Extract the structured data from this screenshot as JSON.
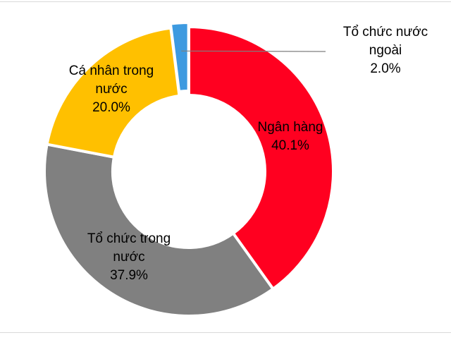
{
  "chart_data": {
    "type": "pie",
    "variant": "donut",
    "title": "",
    "legend": "none",
    "slices": [
      {
        "label": [
          "Ngân hàng"
        ],
        "percent_label": "40.1%",
        "value": 40.1,
        "color": "#ff0020"
      },
      {
        "label": [
          "Tổ chức trong",
          "nước"
        ],
        "percent_label": "37.9%",
        "value": 37.9,
        "color": "#808080"
      },
      {
        "label": [
          "Cá nhân trong",
          "nước"
        ],
        "percent_label": "20.0%",
        "value": 20.0,
        "color": "#ffc000"
      },
      {
        "label": [
          "Tổ chức nước",
          "ngoài"
        ],
        "percent_label": "2.0%",
        "value": 2.0,
        "color": "#3d9ae0"
      }
    ],
    "leader_line_color": "#7f7f7f",
    "separator_color": "#ffffff"
  }
}
